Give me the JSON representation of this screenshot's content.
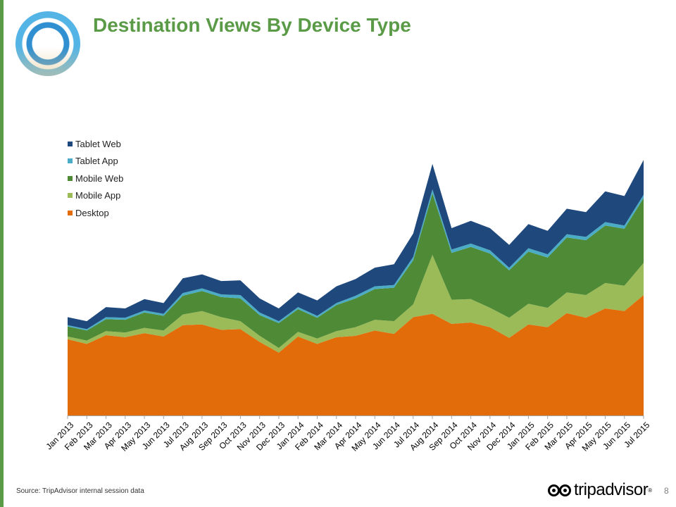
{
  "title": "Destination Views By Device Type",
  "source_text": "Source: TripAdvisor internal session data",
  "brand": {
    "name": "tripadvisor",
    "reg": "®"
  },
  "page_number": "8",
  "colors": {
    "title": "#5b9b48",
    "left_rule": "#5b9b48",
    "Desktop": "#e36c0a",
    "Mobile App": "#9bbb59",
    "Mobile Web": "#4f8a36",
    "Tablet App": "#4bacc6",
    "Tablet Web": "#1f497d"
  },
  "legend": [
    "Tablet Web",
    "Tablet App",
    "Mobile Web",
    "Mobile App",
    "Desktop"
  ],
  "chart_data": {
    "type": "area",
    "stacked": true,
    "x": [
      "Jan 2013",
      "Feb 2013",
      "Mar 2013",
      "Apr 2013",
      "May 2013",
      "Jun 2013",
      "Jul 2013",
      "Aug 2013",
      "Sep 2013",
      "Oct 2013",
      "Nov 2013",
      "Dec 2013",
      "Jan 2014",
      "Feb 2014",
      "Mar 2014",
      "Apr 2014",
      "May 2014",
      "Jun 2014",
      "Jul 2014",
      "Aug 2014",
      "Sep 2014",
      "Oct 2014",
      "Nov 2014",
      "Dec 2014",
      "Jan 2015",
      "Feb 2015",
      "Mar 2015",
      "Apr 2015",
      "May 2015",
      "Jun 2015",
      "Jul 2015"
    ],
    "series": [
      {
        "name": "Desktop",
        "values": [
          114,
          107,
          120,
          117,
          123,
          118,
          135,
          136,
          128,
          129,
          110,
          94,
          118,
          107,
          117,
          119,
          127,
          122,
          147,
          152,
          137,
          139,
          132,
          116,
          136,
          132,
          153,
          146,
          160,
          156,
          180
        ]
      },
      {
        "name": "Mobile App",
        "values": [
          4,
          5,
          6,
          7,
          8,
          9,
          16,
          20,
          19,
          12,
          9,
          7,
          7,
          8,
          9,
          13,
          16,
          19,
          19,
          88,
          36,
          35,
          29,
          30,
          31,
          29,
          31,
          34,
          38,
          38,
          48
        ]
      },
      {
        "name": "Mobile Web",
        "values": [
          15,
          15,
          18,
          19,
          23,
          22,
          28,
          30,
          30,
          34,
          31,
          37,
          34,
          31,
          39,
          43,
          46,
          50,
          66,
          92,
          70,
          78,
          81,
          71,
          78,
          75,
          82,
          82,
          86,
          85,
          97
        ]
      },
      {
        "name": "Tablet App",
        "values": [
          2,
          2,
          3,
          3,
          3,
          3,
          4,
          4,
          4,
          5,
          4,
          3,
          3,
          3,
          3,
          4,
          4,
          4,
          5,
          6,
          5,
          5,
          5,
          4,
          5,
          5,
          5,
          5,
          5,
          5,
          5
        ]
      },
      {
        "name": "Tablet Web",
        "values": [
          12,
          12,
          15,
          14,
          17,
          16,
          22,
          21,
          20,
          22,
          21,
          19,
          22,
          23,
          25,
          25,
          28,
          31,
          35,
          38,
          32,
          34,
          33,
          34,
          36,
          35,
          38,
          37,
          46,
          44,
          52
        ]
      }
    ]
  }
}
